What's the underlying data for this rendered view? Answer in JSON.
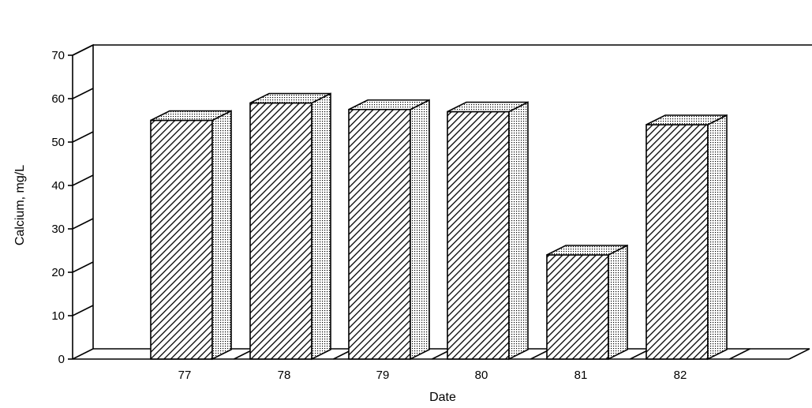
{
  "chart_data": {
    "type": "bar",
    "style": "3d-hatched",
    "categories": [
      "77",
      "78",
      "79",
      "80",
      "81",
      "82"
    ],
    "values": [
      55,
      59,
      57.5,
      57,
      24,
      54
    ],
    "xlabel": "Date",
    "ylabel": "Calcium, mg/L",
    "ylim": [
      0,
      70
    ],
    "yticks": [
      "0",
      "10",
      "20",
      "30",
      "40",
      "50",
      "60",
      "70"
    ],
    "grid": false,
    "legend": "none"
  }
}
